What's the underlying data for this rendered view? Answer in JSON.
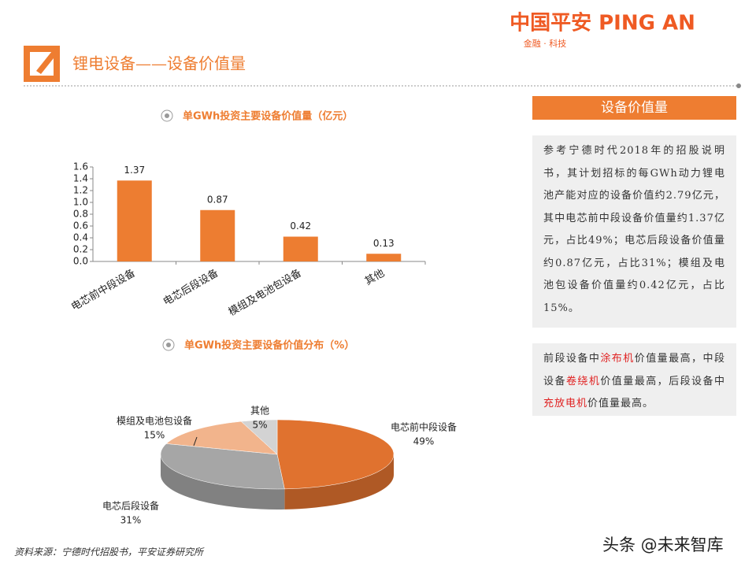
{
  "header": {
    "logo": "中国平安 PING AN",
    "logo_tagline": "金融 · 科技",
    "title": "锂电设备——设备价值量"
  },
  "chart_data": [
    {
      "type": "bar",
      "title": "单GWh投资主要设备价值量（亿元）",
      "categories": [
        "电芯前中段设备",
        "电芯后段设备",
        "模组及电池包设备",
        "其他"
      ],
      "values": [
        1.37,
        0.87,
        0.42,
        0.13
      ],
      "color": "#ed7d31",
      "ylim": [
        0,
        1.6
      ],
      "yticks": [
        {
          "value": 0,
          "label": "0.0"
        },
        {
          "value": 0.2,
          "label": "0.2"
        },
        {
          "value": 0.4,
          "label": "0.4"
        },
        {
          "value": 0.6,
          "label": "0.6"
        },
        {
          "value": 0.8,
          "label": "0.8"
        },
        {
          "value": 1,
          "label": "1.0"
        },
        {
          "value": 1.2,
          "label": "1.2"
        },
        {
          "value": 1.4,
          "label": "1.4"
        },
        {
          "value": 1.6,
          "label": "1.6"
        }
      ]
    },
    {
      "type": "pie",
      "title": "单GWh投资主要设备价值分布（%）",
      "categories": [
        "电芯前中段设备",
        "电芯后段设备",
        "模组及电池包设备",
        "其他"
      ],
      "values": [
        49,
        31,
        15,
        5
      ],
      "value_labels": [
        "49%",
        "31%",
        "15%",
        "5%"
      ],
      "colors": [
        "#e0722f",
        "#a6a6a6",
        "#f2b48c",
        "#d3d3d3"
      ]
    }
  ],
  "side": {
    "title": "设备价值量",
    "paragraph1": "参考宁德时代2018年的招股说明书，其计划招标的每GWh动力锂电池产能对应的设备价值约2.79亿元，其中电芯前中段设备价值量约1.37亿元，占比49%；电芯后段设备价值量约0.87亿元，占比31%；模组及电池包设备价值量约0.42亿元，占比15%。",
    "paragraph2": [
      "前段设备中",
      "涂布机",
      "价值量最高，中段设备",
      "卷绕机",
      "价值量最高，后段设备中",
      "充放电机",
      "价值量最高。"
    ]
  },
  "source": "资料来源：宁德时代招股书，平安证券研究所",
  "watermark": "头条 @未来智库"
}
